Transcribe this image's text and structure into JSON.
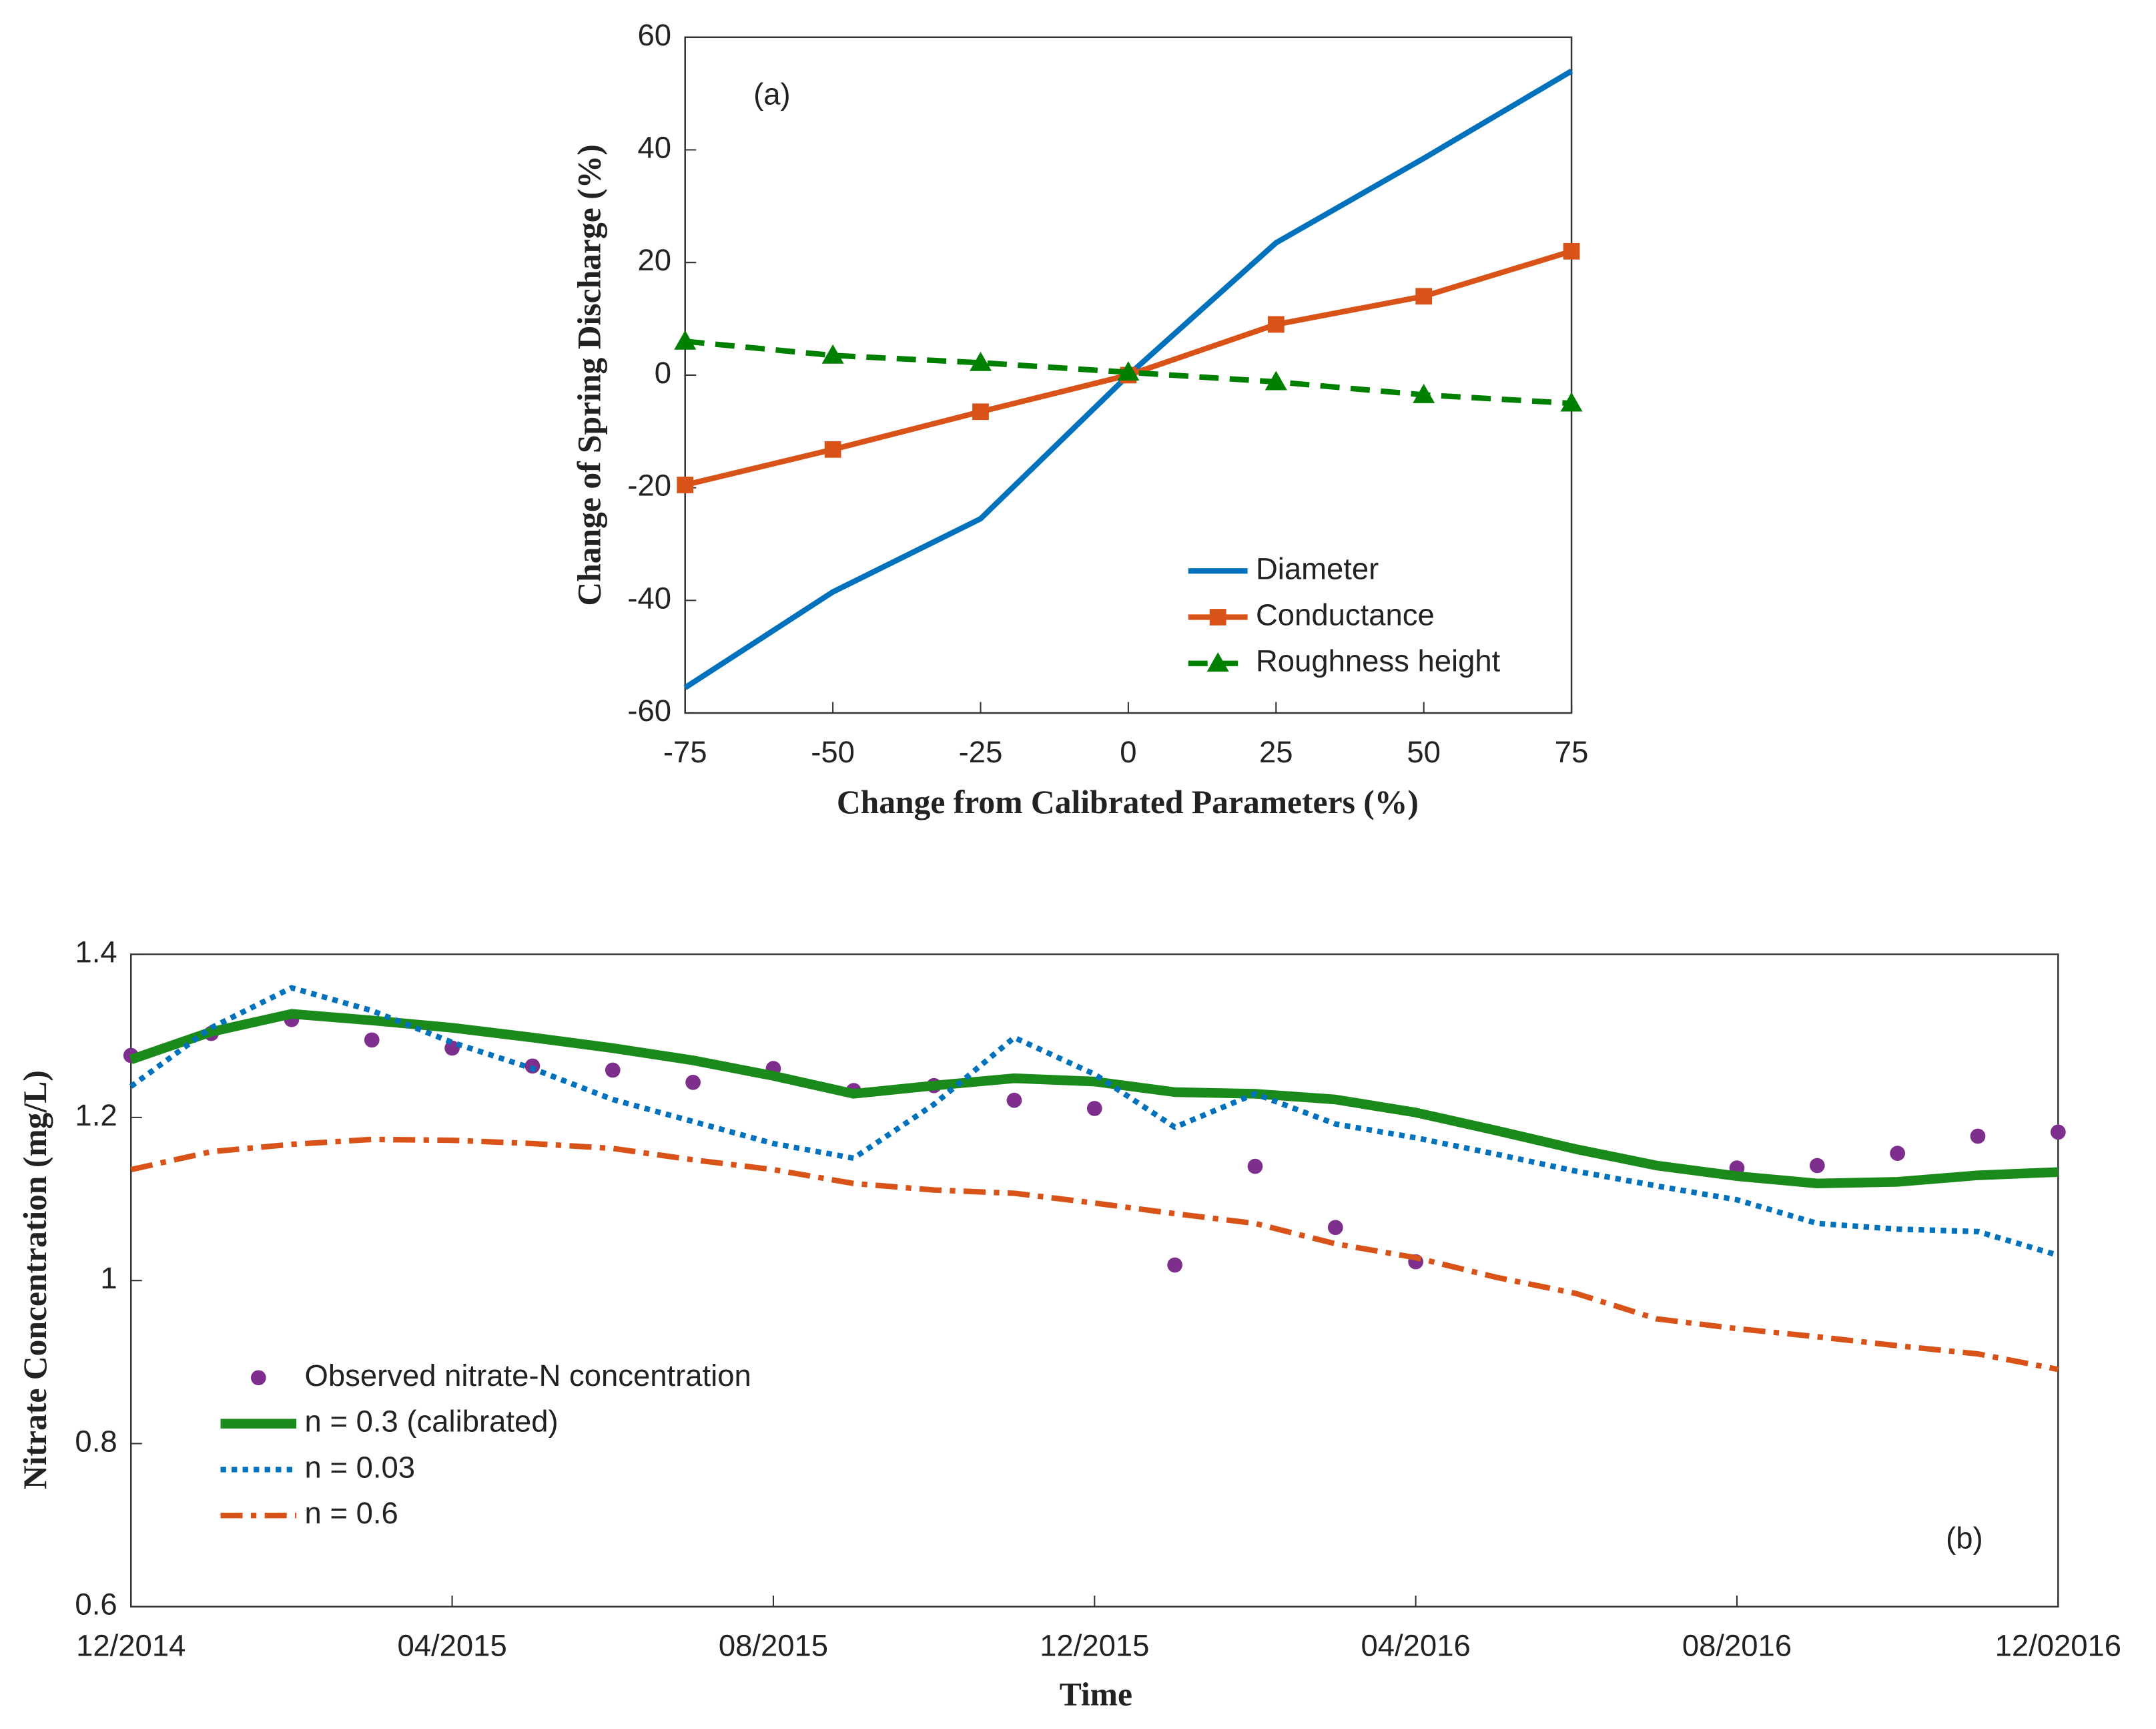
{
  "chart_data": [
    {
      "type": "line",
      "annotation": "(a)",
      "x_label": "Change from Calibrated Parameters (%)",
      "y_label": "Change of Spring Discharge (%)",
      "x": [
        -75,
        -50,
        -25,
        0,
        25,
        50,
        75
      ],
      "xlim": [
        -75,
        75
      ],
      "xticks": [
        -75,
        -50,
        -25,
        0,
        25,
        50,
        75
      ],
      "ylim": [
        -60,
        60
      ],
      "yticks": [
        -60,
        -40,
        -20,
        0,
        20,
        40,
        60
      ],
      "legend": "lower right",
      "series": [
        {
          "name": "Diameter",
          "color": "#0072BD",
          "line_style": "solid",
          "marker": "none",
          "values": [
            -55.5,
            -38.5,
            -25.5,
            0,
            23.5,
            38.5,
            54
          ]
        },
        {
          "name": "Conductance",
          "color": "#D95319",
          "line_style": "solid",
          "marker": "square",
          "values": [
            -19.5,
            -13.2,
            -6.5,
            0,
            9,
            14,
            22
          ]
        },
        {
          "name": "Roughness height",
          "color": "#008000",
          "line_style": "dashed",
          "marker": "triangle",
          "values": [
            6,
            3.5,
            2.2,
            0.5,
            -1.2,
            -3.5,
            -5
          ]
        }
      ]
    },
    {
      "type": "line",
      "annotation": "(b)",
      "x_label": "Time",
      "y_label": "Nitrate Concentration (mg/L)",
      "categories": [
        "12/2014",
        null,
        null,
        null,
        "04/2015",
        null,
        null,
        null,
        "08/2015",
        null,
        null,
        null,
        "12/2015",
        null,
        null,
        null,
        "04/2016",
        null,
        null,
        null,
        "08/2016",
        null,
        null,
        null,
        "12/02016"
      ],
      "ylim": [
        0.6,
        1.4
      ],
      "yticks": [
        0.6,
        0.8,
        1,
        1.2,
        1.4
      ],
      "legend": "lower left",
      "series": [
        {
          "name": "Observed nitrate-N concentration",
          "color": "#7E2F8E",
          "line_style": "none",
          "marker": "circle",
          "values": [
            1.276,
            1.303,
            1.32,
            1.295,
            1.285,
            1.263,
            1.258,
            1.243,
            1.26,
            1.233,
            1.239,
            1.221,
            1.211,
            1.019,
            1.14,
            1.065,
            1.023,
            null,
            null,
            null,
            1.138,
            1.141,
            1.156,
            1.177,
            1.182
          ]
        },
        {
          "name": "n = 0.3 (calibrated)",
          "color": "#1a8a1a",
          "line_style": "thick",
          "marker": "none",
          "values": [
            1.271,
            1.305,
            1.327,
            1.319,
            1.31,
            1.298,
            1.285,
            1.27,
            1.251,
            1.229,
            1.239,
            1.248,
            1.244,
            1.231,
            1.229,
            1.222,
            1.206,
            1.184,
            1.161,
            1.141,
            1.128,
            1.119,
            1.121,
            1.129,
            1.133
          ]
        },
        {
          "name": "n = 0.03",
          "color": "#0072BD",
          "line_style": "dotted",
          "marker": "none",
          "values": [
            1.238,
            1.31,
            1.359,
            1.331,
            1.292,
            1.26,
            1.222,
            1.195,
            1.168,
            1.15,
            1.216,
            1.298,
            1.253,
            1.188,
            1.229,
            1.192,
            1.175,
            1.155,
            1.134,
            1.116,
            1.099,
            1.07,
            1.063,
            1.06,
            1.031
          ]
        },
        {
          "name": "n = 0.6",
          "color": "#D95319",
          "line_style": "dashdot",
          "marker": "none",
          "values": [
            1.136,
            1.158,
            1.167,
            1.173,
            1.172,
            1.168,
            1.162,
            1.148,
            1.136,
            1.119,
            1.111,
            1.107,
            1.095,
            1.082,
            1.07,
            1.045,
            1.028,
            1.004,
            0.984,
            0.953,
            0.941,
            0.931,
            0.92,
            0.91,
            0.891
          ]
        }
      ]
    }
  ]
}
